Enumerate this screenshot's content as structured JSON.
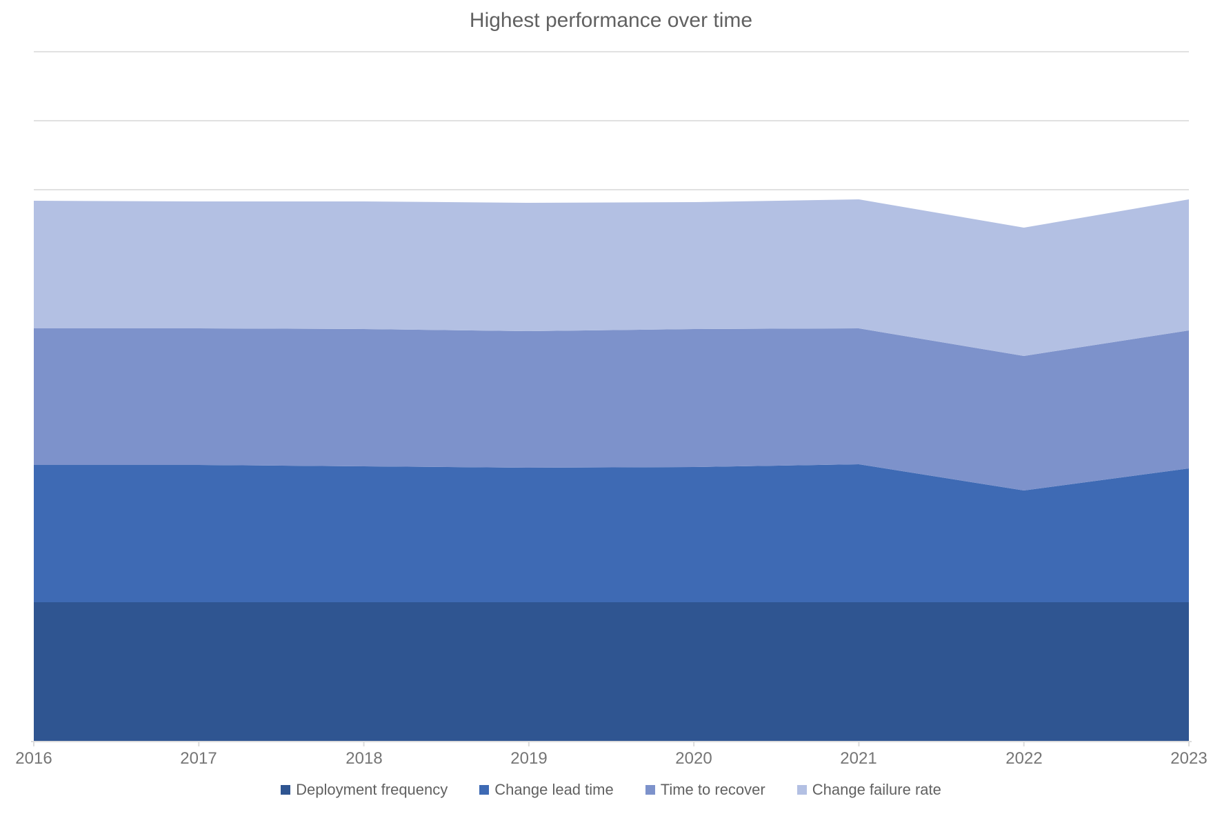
{
  "title": "Highest performance over time",
  "chart_data": {
    "type": "area",
    "stacked": true,
    "title": "Highest performance over time",
    "x": [
      "2016",
      "2017",
      "2018",
      "2019",
      "2020",
      "2021",
      "2022",
      "2023"
    ],
    "series": [
      {
        "name": "Deployment frequency",
        "color": "#2F5591",
        "values": [
          20.2,
          20.2,
          20.2,
          20.2,
          20.2,
          20.2,
          20.2,
          20.2
        ]
      },
      {
        "name": "Change lead time",
        "color": "#3E6AB4",
        "values": [
          19.9,
          19.9,
          19.7,
          19.5,
          19.6,
          20.0,
          16.2,
          19.4
        ]
      },
      {
        "name": "Time to recover",
        "color": "#7D92CB",
        "values": [
          19.8,
          19.8,
          19.9,
          19.8,
          20.0,
          19.7,
          19.5,
          20.0
        ]
      },
      {
        "name": "Change failure rate",
        "color": "#B3C0E3",
        "values": [
          18.5,
          18.4,
          18.5,
          18.6,
          18.4,
          18.7,
          18.6,
          19.0
        ]
      }
    ],
    "xlabel": "",
    "ylabel": "",
    "ylim": [
      0,
      100
    ],
    "y_tick_labels_shown": false,
    "gridlines_y": [
      80,
      90,
      100
    ],
    "grid": "horizontal-only",
    "gridline_color": "#e1e1e1",
    "axis_line_color": "#dcdcdc",
    "legend_position": "bottom"
  }
}
